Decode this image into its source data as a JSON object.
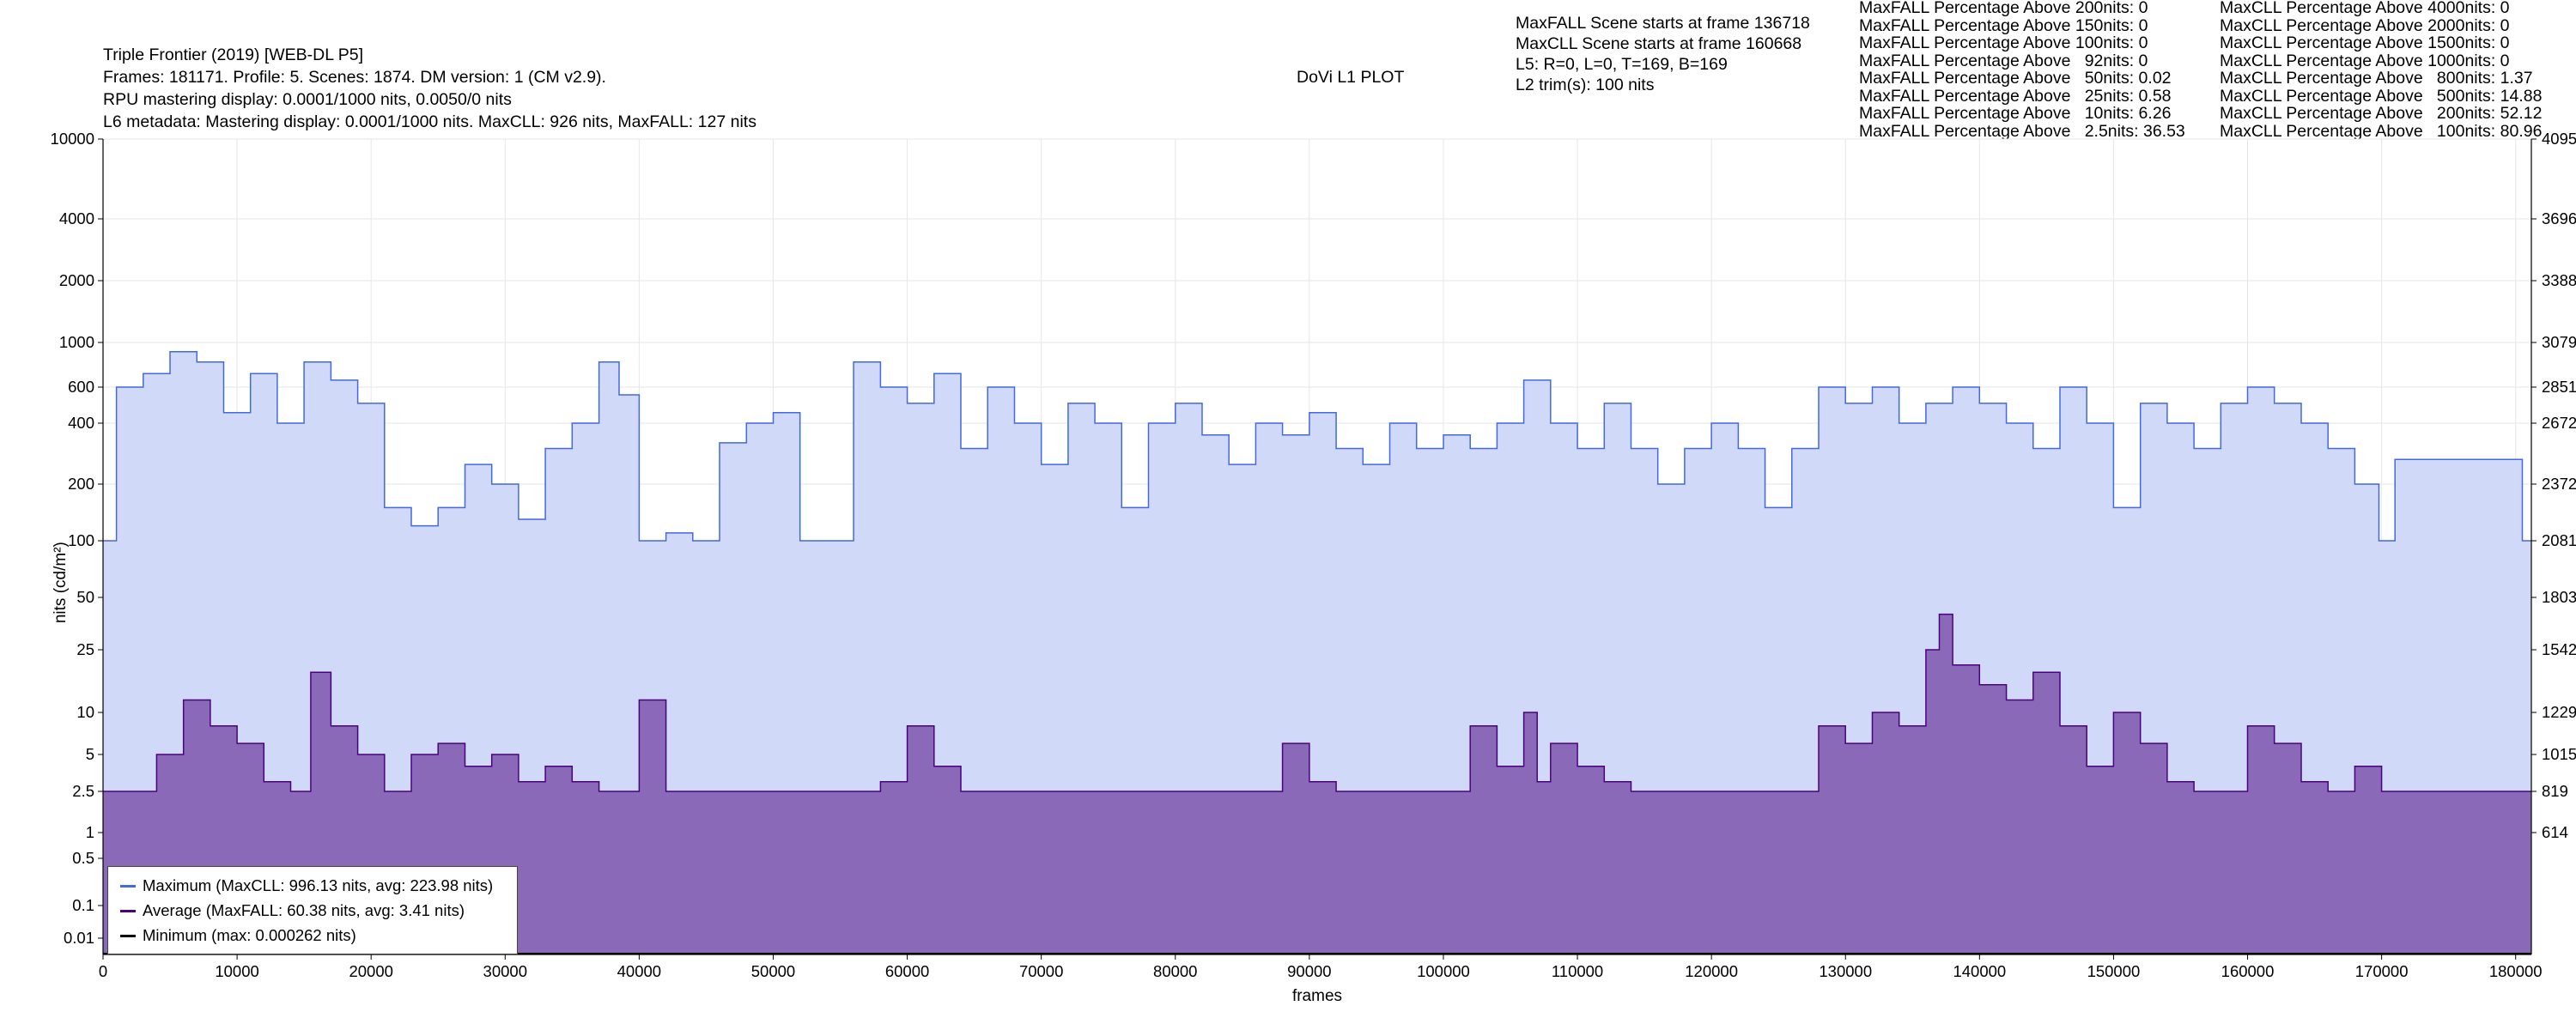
{
  "header": {
    "info_lines": [
      "Triple Frontier (2019) [WEB-DL P5]",
      "Frames: 181171. Profile: 5. Scenes: 1874. DM version: 1 (CM v2.9).",
      "RPU mastering display: 0.0001/1000 nits, 0.0050/0 nits",
      "L6 metadata: Mastering display: 0.0001/1000 nits. MaxCLL: 926 nits, MaxFALL: 127 nits"
    ],
    "center_title": "DoVi L1 PLOT",
    "scene_lines": [
      "MaxFALL Scene starts at frame 136718",
      "MaxCLL Scene starts at frame 160668",
      "L5: R=0, L=0, T=169, B=169",
      "L2 trim(s): 100 nits"
    ],
    "maxfall_pct": [
      "MaxFALL Percentage Above 200nits: 0",
      "MaxFALL Percentage Above 150nits: 0",
      "MaxFALL Percentage Above 100nits: 0",
      "MaxFALL Percentage Above   92nits: 0",
      "MaxFALL Percentage Above   50nits: 0.02",
      "MaxFALL Percentage Above   25nits: 0.58",
      "MaxFALL Percentage Above   10nits: 6.26",
      "MaxFALL Percentage Above   2.5nits: 36.53"
    ],
    "maxcll_pct": [
      "MaxCLL Percentage Above 4000nits: 0",
      "MaxCLL Percentage Above 2000nits: 0",
      "MaxCLL Percentage Above 1500nits: 0",
      "MaxCLL Percentage Above 1000nits: 0",
      "MaxCLL Percentage Above   800nits: 1.37",
      "MaxCLL Percentage Above   500nits: 14.88",
      "MaxCLL Percentage Above   200nits: 52.12",
      "MaxCLL Percentage Above   100nits: 80.96"
    ]
  },
  "chart_data": {
    "type": "area",
    "title": "DoVi L1 PLOT",
    "xlabel": "frames",
    "ylabel": "nits (cd/m²)",
    "xlim": [
      0,
      181171
    ],
    "x_ticks": [
      0,
      10000,
      20000,
      30000,
      40000,
      50000,
      60000,
      70000,
      80000,
      90000,
      100000,
      110000,
      120000,
      130000,
      140000,
      150000,
      160000,
      170000,
      180000
    ],
    "y_ticks": [
      "10000",
      "4000",
      "2000",
      "1000",
      "600",
      "400",
      "200",
      "100",
      "50",
      "25",
      "10",
      "5",
      "2.5",
      "1",
      "0.5",
      "0.1",
      "0.01"
    ],
    "y_ticks_right": [
      "4095",
      "3696",
      "3388",
      "3079",
      "2851",
      "2672",
      "2372",
      "2081",
      "1803",
      "1542",
      "1229",
      "1015",
      "819",
      "614"
    ],
    "grid": true,
    "legend_position": "bottom-left",
    "colors": {
      "max_line": "#4169e1",
      "max_fill": "#d0d9f7",
      "avg_line": "#4b0082",
      "avg_fill": "#8a6ab8",
      "min_line": "#000000"
    },
    "series": [
      {
        "name": "Maximum (MaxCLL: 996.13 nits, avg: 223.98 nits)",
        "max": 996.13,
        "avg": 223.98,
        "x": [
          0,
          1000,
          3000,
          5000,
          7000,
          9000,
          11000,
          13000,
          15000,
          17000,
          19000,
          21000,
          23000,
          25000,
          27000,
          29000,
          31000,
          33000,
          35000,
          37000,
          38500,
          40000,
          42000,
          44000,
          46000,
          48000,
          50000,
          52000,
          54000,
          56000,
          58000,
          60000,
          62000,
          64000,
          66000,
          68000,
          70000,
          72000,
          74000,
          76000,
          78000,
          80000,
          82000,
          84000,
          86000,
          88000,
          90000,
          92000,
          94000,
          96000,
          98000,
          100000,
          102000,
          104000,
          106000,
          108000,
          110000,
          112000,
          114000,
          116000,
          118000,
          120000,
          122000,
          124000,
          126000,
          128000,
          130000,
          132000,
          134000,
          136000,
          138000,
          140000,
          142000,
          144000,
          146000,
          148000,
          150000,
          152000,
          154000,
          156000,
          158000,
          160000,
          162000,
          164000,
          166000,
          168000,
          169800,
          171000,
          175000,
          179000,
          180500,
          181171
        ],
        "y": [
          100,
          600,
          700,
          900,
          800,
          450,
          700,
          400,
          800,
          650,
          500,
          150,
          120,
          150,
          250,
          200,
          130,
          300,
          400,
          800,
          550,
          100,
          110,
          100,
          320,
          400,
          450,
          100,
          100,
          800,
          600,
          500,
          700,
          300,
          600,
          400,
          250,
          500,
          400,
          150,
          400,
          500,
          350,
          250,
          400,
          350,
          450,
          300,
          250,
          400,
          300,
          350,
          300,
          400,
          650,
          400,
          300,
          500,
          300,
          200,
          300,
          400,
          300,
          150,
          300,
          600,
          500,
          600,
          400,
          500,
          600,
          500,
          400,
          300,
          600,
          400,
          150,
          500,
          400,
          300,
          500,
          600,
          500,
          400,
          300,
          200,
          100,
          265,
          265,
          265,
          100,
          100
        ]
      },
      {
        "name": "Average (MaxFALL: 60.38 nits, avg: 3.41 nits)",
        "max": 60.38,
        "avg": 3.41,
        "x": [
          0,
          2000,
          4000,
          6000,
          8000,
          10000,
          12000,
          14000,
          15500,
          17000,
          19000,
          21000,
          23000,
          25000,
          27000,
          29000,
          31000,
          33000,
          35000,
          37000,
          40000,
          42000,
          56000,
          58000,
          60000,
          62000,
          64000,
          66000,
          84000,
          86000,
          88000,
          90000,
          92000,
          100000,
          102000,
          104000,
          106000,
          107000,
          108000,
          110000,
          112000,
          114000,
          116000,
          118000,
          120000,
          126000,
          128000,
          130000,
          132000,
          134000,
          136000,
          137000,
          138000,
          140000,
          142000,
          144000,
          146000,
          148000,
          150000,
          152000,
          154000,
          156000,
          158000,
          160000,
          162000,
          164000,
          166000,
          168000,
          170000,
          181171
        ],
        "y": [
          2.5,
          2.5,
          5,
          12,
          8,
          6,
          3,
          2.5,
          18,
          8,
          5,
          2.5,
          5,
          6,
          4,
          5,
          3,
          4,
          3,
          2.5,
          12,
          2.5,
          2.5,
          3,
          8,
          4,
          2.5,
          2.5,
          2.5,
          2.5,
          6,
          3,
          2.5,
          2.5,
          8,
          4,
          10,
          3,
          6,
          4,
          3,
          2.5,
          2.5,
          2.5,
          2.5,
          2.5,
          8,
          6,
          10,
          8,
          25,
          40,
          20,
          15,
          12,
          18,
          8,
          4,
          10,
          6,
          3,
          2.5,
          2.5,
          8,
          6,
          3,
          2.5,
          4,
          2.5,
          2.5
        ]
      },
      {
        "name": "Minimum (max: 0.000262 nits)",
        "max": 0.000262
      }
    ]
  }
}
